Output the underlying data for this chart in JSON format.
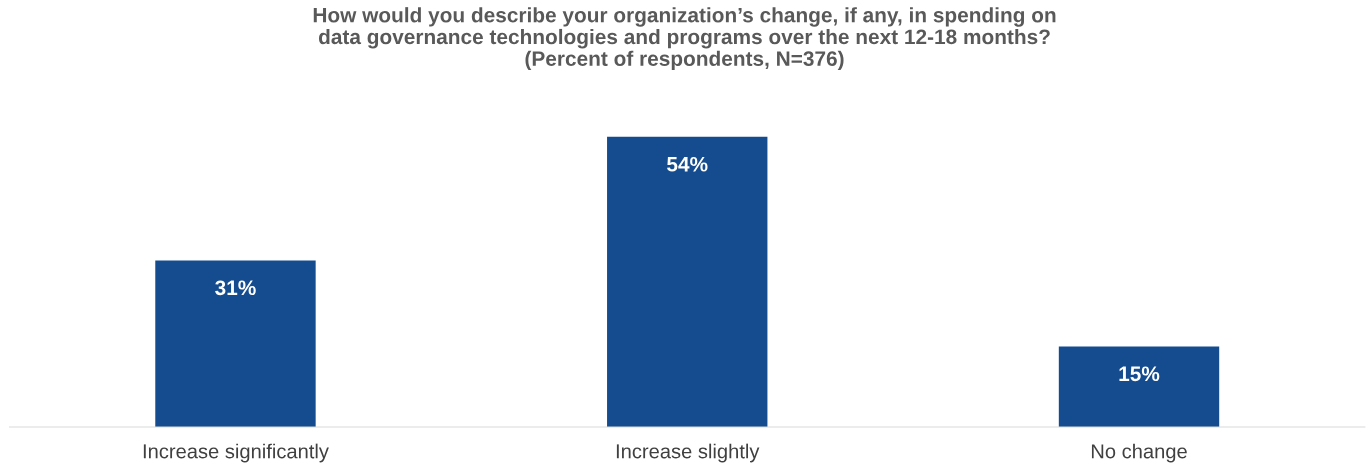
{
  "chart_data": {
    "type": "bar",
    "title": "How would you describe your organization’s change, if any, in spending on\ndata governance technologies and programs over the next 12-18 months?\n(Percent of respondents, N=376)",
    "categories": [
      "Increase significantly",
      "Increase slightly",
      "No change"
    ],
    "values": [
      31,
      54,
      15
    ],
    "color": "#154c8f",
    "value_labels": [
      "31%",
      "54%",
      "15%"
    ],
    "grid": false,
    "legend": false
  }
}
